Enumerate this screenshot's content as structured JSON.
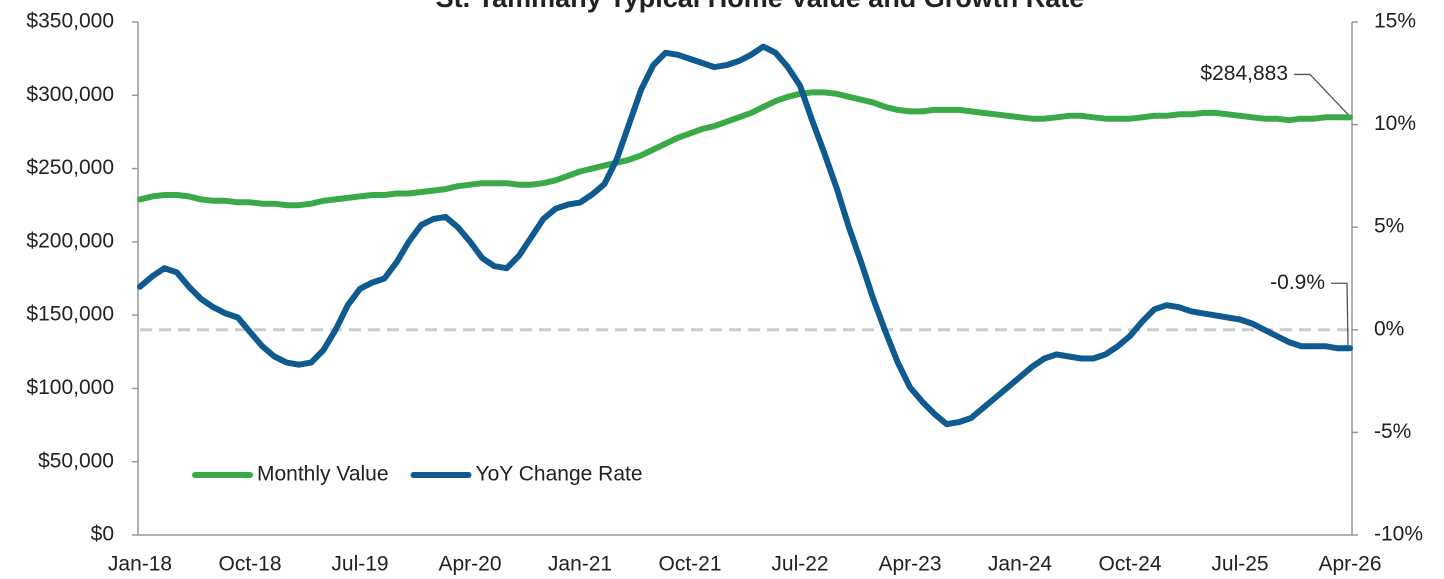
{
  "chart_data": {
    "type": "line",
    "title": "St. Tammany Typical Home Value and Growth Rate",
    "categories": [
      "Jan-18",
      null,
      null,
      null,
      null,
      null,
      null,
      null,
      null,
      "Oct-18",
      null,
      null,
      null,
      null,
      null,
      null,
      null,
      null,
      "Jul-19",
      null,
      null,
      null,
      null,
      null,
      null,
      null,
      null,
      "Apr-20",
      null,
      null,
      null,
      null,
      null,
      null,
      null,
      null,
      "Jan-21",
      null,
      null,
      null,
      null,
      null,
      null,
      null,
      null,
      "Oct-21",
      null,
      null,
      null,
      null,
      null,
      null,
      null,
      null,
      "Jul-22",
      null,
      null,
      null,
      null,
      null,
      null,
      null,
      null,
      "Apr-23",
      null,
      null,
      null,
      null,
      null,
      null,
      null,
      null,
      "Jan-24",
      null,
      null,
      null,
      null,
      null,
      null,
      null,
      null,
      "Oct-24",
      null,
      null,
      null,
      null,
      null,
      null,
      null,
      null,
      "Jul-25",
      null,
      null,
      null,
      null,
      null,
      null,
      null,
      null,
      "Apr-26"
    ],
    "series": [
      {
        "name": "Monthly Value",
        "color": "#3aaa48",
        "values": [
          229000,
          231000,
          232000,
          232000,
          231000,
          229000,
          228000,
          228000,
          227000,
          227000,
          226000,
          226000,
          225000,
          225000,
          226000,
          228000,
          229000,
          230000,
          231000,
          232000,
          232000,
          233000,
          233000,
          234000,
          235000,
          236000,
          238000,
          239000,
          240000,
          240000,
          240000,
          239000,
          239000,
          240000,
          242000,
          245000,
          248000,
          250000,
          252000,
          254000,
          256000,
          259000,
          263000,
          267000,
          271000,
          274000,
          277000,
          279000,
          282000,
          285000,
          288000,
          292000,
          296000,
          299000,
          301000,
          302000,
          302000,
          301000,
          299000,
          297000,
          295000,
          292000,
          290000,
          289000,
          289000,
          290000,
          290000,
          290000,
          289000,
          288000,
          287000,
          286000,
          285000,
          284000,
          284000,
          285000,
          286000,
          286000,
          285000,
          284000,
          284000,
          284000,
          285000,
          286000,
          286000,
          287000,
          287000,
          288000,
          288000,
          287000,
          286000,
          285000,
          284000,
          284000,
          283000,
          284000,
          284000,
          285000,
          285000,
          284883
        ],
        "value_labels": [
          null,
          null,
          null,
          null,
          null,
          null,
          null,
          null,
          null,
          null,
          null,
          null,
          null,
          null,
          null,
          null,
          null,
          null,
          null,
          null,
          null,
          null,
          null,
          null,
          null,
          null,
          null,
          null,
          null,
          null,
          null,
          null,
          null,
          null,
          null,
          null,
          null,
          null,
          null,
          null,
          null,
          null,
          null,
          null,
          null,
          null,
          null,
          null,
          null,
          null,
          null,
          null,
          null,
          null,
          null,
          null,
          null,
          null,
          null,
          null,
          null,
          null,
          null,
          null,
          null,
          null,
          null,
          null,
          null,
          null,
          null,
          null,
          null,
          null,
          null,
          null,
          null,
          null,
          null,
          null,
          null,
          null,
          null,
          null,
          null,
          null,
          null,
          null,
          null,
          null,
          null,
          null,
          null,
          null,
          null,
          null,
          null,
          null,
          null,
          "$284,883"
        ]
      },
      {
        "name": "YoY Change Rate",
        "color": "#0f5a8f",
        "axis": "y2",
        "values": [
          2.1,
          2.6,
          3.0,
          2.8,
          2.1,
          1.5,
          1.1,
          0.8,
          0.6,
          -0.1,
          -0.8,
          -1.3,
          -1.6,
          -1.7,
          -1.6,
          -1.0,
          0.0,
          1.2,
          2.0,
          2.3,
          2.5,
          3.3,
          4.3,
          5.1,
          5.4,
          5.5,
          5.0,
          4.3,
          3.5,
          3.1,
          3.0,
          3.6,
          4.5,
          5.4,
          5.9,
          6.1,
          6.2,
          6.6,
          7.1,
          8.3,
          10.0,
          11.7,
          12.9,
          13.5,
          13.4,
          13.2,
          13.0,
          12.8,
          12.9,
          13.1,
          13.4,
          13.8,
          13.5,
          12.8,
          11.9,
          10.2,
          8.6,
          6.9,
          5.0,
          3.3,
          1.5,
          -0.1,
          -1.6,
          -2.8,
          -3.5,
          -4.1,
          -4.6,
          -4.5,
          -4.3,
          -3.8,
          -3.3,
          -2.8,
          -2.3,
          -1.8,
          -1.4,
          -1.2,
          -1.3,
          -1.4,
          -1.4,
          -1.2,
          -0.8,
          -0.3,
          0.4,
          1.0,
          1.2,
          1.1,
          0.9,
          0.8,
          0.7,
          0.6,
          0.5,
          0.3,
          0.0,
          -0.3,
          -0.6,
          -0.8,
          -0.8,
          -0.8,
          -0.9,
          -0.9
        ],
        "value_labels": [
          null,
          null,
          null,
          null,
          null,
          null,
          null,
          null,
          null,
          null,
          null,
          null,
          null,
          null,
          null,
          null,
          null,
          null,
          null,
          null,
          null,
          null,
          null,
          null,
          null,
          null,
          null,
          null,
          null,
          null,
          null,
          null,
          null,
          null,
          null,
          null,
          null,
          null,
          null,
          null,
          null,
          null,
          null,
          null,
          null,
          null,
          null,
          null,
          null,
          null,
          null,
          null,
          null,
          null,
          null,
          null,
          null,
          null,
          null,
          null,
          null,
          null,
          null,
          null,
          null,
          null,
          null,
          null,
          null,
          null,
          null,
          null,
          null,
          null,
          null,
          null,
          null,
          null,
          null,
          null,
          null,
          null,
          null,
          null,
          null,
          null,
          null,
          null,
          null,
          null,
          null,
          null,
          null,
          null,
          null,
          null,
          null,
          null,
          null,
          "-0.9%"
        ]
      }
    ],
    "ylim": [
      0,
      350000
    ],
    "yticks": [
      {
        "value": 0,
        "label": "$0"
      },
      {
        "value": 50000,
        "label": "$50,000"
      },
      {
        "value": 100000,
        "label": "$100,000"
      },
      {
        "value": 150000,
        "label": "$150,000"
      },
      {
        "value": 200000,
        "label": "$200,000"
      },
      {
        "value": 250000,
        "label": "$250,000"
      },
      {
        "value": 300000,
        "label": "$300,000"
      },
      {
        "value": 350000,
        "label": "$350,000"
      }
    ],
    "y2lim": [
      -10,
      15
    ],
    "y2ticks": [
      {
        "value": -10,
        "label": "-10%"
      },
      {
        "value": -5,
        "label": "-5%"
      },
      {
        "value": 0,
        "label": "0%"
      },
      {
        "value": 5,
        "label": "5%"
      },
      {
        "value": 10,
        "label": "10%"
      },
      {
        "value": 15,
        "label": "15%"
      }
    ],
    "legend": "lower left"
  }
}
